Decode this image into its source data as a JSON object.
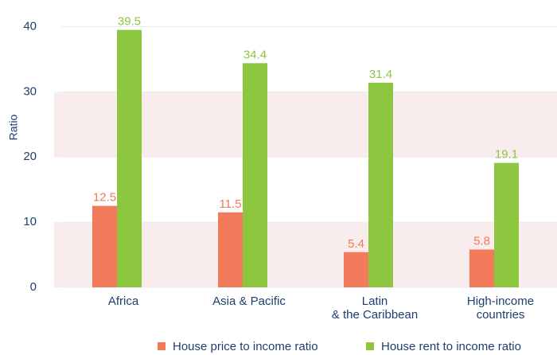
{
  "chart_data": {
    "type": "bar",
    "y_label": "Ratio",
    "categories": [
      "Africa",
      "Asia & Pacific",
      "Latin\n& the Caribbean",
      "High-income\ncountries"
    ],
    "series": [
      {
        "name": "House price to income ratio",
        "color": "#f07a5a",
        "values": [
          12.5,
          11.5,
          5.4,
          5.8
        ]
      },
      {
        "name": "House rent to income ratio",
        "color": "#8dc63f",
        "values": [
          39.5,
          34.4,
          31.4,
          19.1
        ]
      }
    ],
    "ylim": [
      0,
      40
    ],
    "yticks": [
      0,
      10,
      20,
      30,
      40
    ],
    "bands": true
  }
}
